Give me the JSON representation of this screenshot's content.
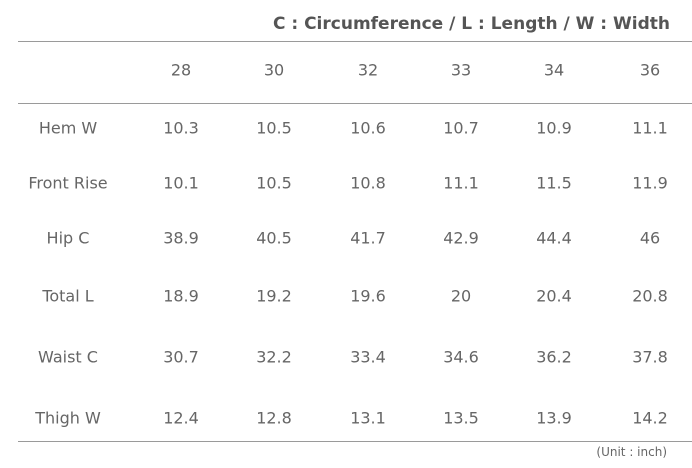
{
  "legend": "C : Circumference / L : Length / W : Width",
  "table": {
    "header": [
      28,
      30,
      32,
      33,
      34,
      36
    ],
    "rows": [
      {
        "label": "Hem W",
        "values": [
          10.3,
          10.5,
          10.6,
          10.7,
          10.9,
          11.1
        ]
      },
      {
        "label": "Front Rise",
        "values": [
          10.1,
          10.5,
          10.8,
          11.1,
          11.5,
          11.9
        ]
      },
      {
        "label": "Hip C",
        "values": [
          38.9,
          40.5,
          41.7,
          42.9,
          44.4,
          46
        ]
      },
      {
        "label": "Total L",
        "values": [
          18.9,
          19.2,
          19.6,
          20,
          20.4,
          20.8
        ]
      },
      {
        "label": "Waist C",
        "values": [
          30.7,
          32.2,
          33.4,
          34.6,
          36.2,
          37.8
        ]
      },
      {
        "label": "Thigh W",
        "values": [
          12.4,
          12.8,
          13.1,
          13.5,
          13.9,
          14.2
        ]
      }
    ]
  },
  "unit_note": "(Unit : inch)"
}
